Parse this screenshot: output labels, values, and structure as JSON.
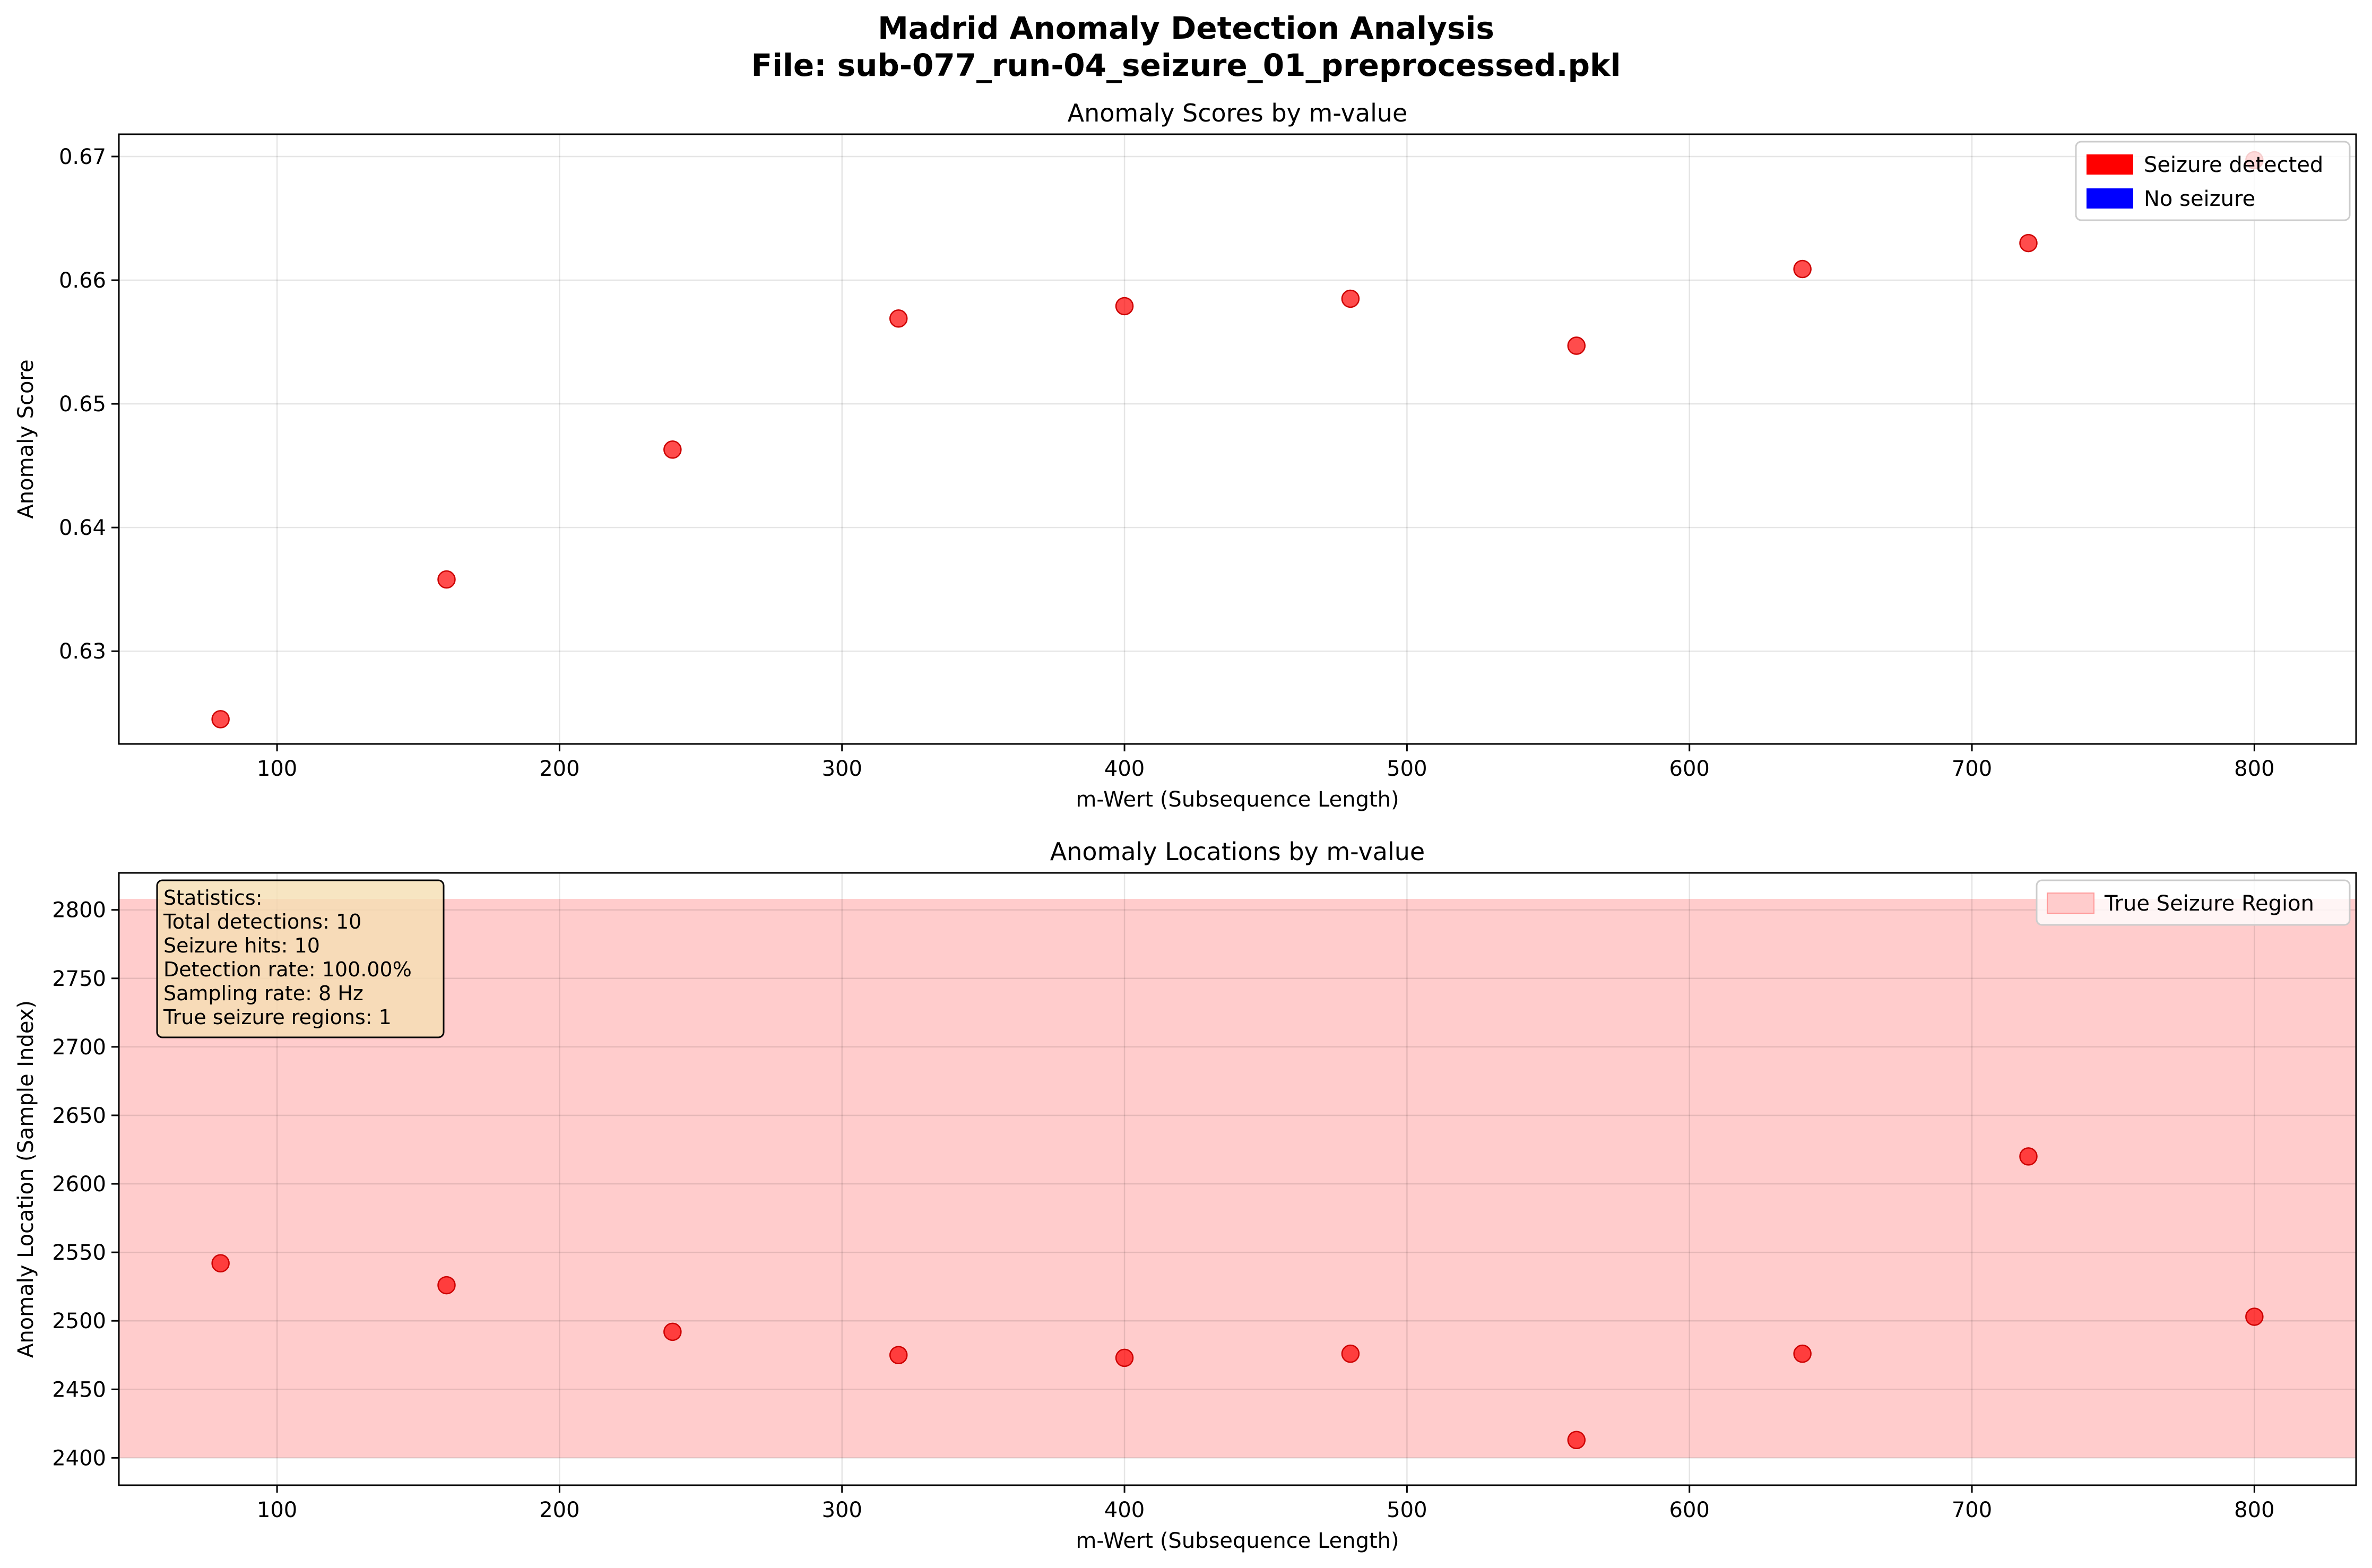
{
  "figure": {
    "title_line1": "Madrid Anomaly Detection Analysis",
    "title_line2": "File: sub-077_run-04_seizure_01_preprocessed.pkl"
  },
  "colors": {
    "marker": "#ff0000",
    "no_seizure": "#0000ff",
    "region": "#ffcccc",
    "stats_box": "#f5deb3",
    "grid": "#e6e6e6"
  },
  "chart_data": [
    {
      "type": "scatter",
      "title": "Anomaly Scores by m-value",
      "xlabel": "m-Wert (Subsequence Length)",
      "ylabel": "Anomaly Score",
      "xlim": [
        44,
        836
      ],
      "ylim": [
        0.6225,
        0.6718
      ],
      "xticks": [
        100,
        200,
        300,
        400,
        500,
        600,
        700,
        800
      ],
      "yticks": [
        0.63,
        0.64,
        0.65,
        0.66,
        0.67
      ],
      "ytick_labels": [
        "0.63",
        "0.64",
        "0.65",
        "0.66",
        "0.67"
      ],
      "grid": true,
      "legend_placement": "top-right",
      "legend": [
        {
          "label": "Seizure detected",
          "color": "#ff0000"
        },
        {
          "label": "No seizure",
          "color": "#0000ff"
        }
      ],
      "x": [
        80,
        160,
        240,
        320,
        400,
        480,
        560,
        640,
        720,
        800
      ],
      "y": [
        0.6245,
        0.6358,
        0.6463,
        0.6569,
        0.6579,
        0.6585,
        0.6547,
        0.6609,
        0.663,
        0.6697
      ]
    },
    {
      "type": "scatter",
      "title": "Anomaly Locations by m-value",
      "xlabel": "m-Wert (Subsequence Length)",
      "ylabel": "Anomaly Location (Sample Index)",
      "xlim": [
        44,
        836
      ],
      "ylim": [
        2380,
        2827
      ],
      "xticks": [
        100,
        200,
        300,
        400,
        500,
        600,
        700,
        800
      ],
      "yticks": [
        2400,
        2450,
        2500,
        2550,
        2600,
        2650,
        2700,
        2750,
        2800
      ],
      "ytick_labels": [
        "2400",
        "2450",
        "2500",
        "2550",
        "2600",
        "2650",
        "2700",
        "2750",
        "2800"
      ],
      "grid": true,
      "legend_placement": "top-right",
      "legend": [
        {
          "label": "True Seizure Region",
          "color": "#ffcccc"
        }
      ],
      "seizure_region": [
        2400,
        2808
      ],
      "x": [
        80,
        160,
        240,
        320,
        400,
        480,
        560,
        640,
        720,
        800
      ],
      "y": [
        2542,
        2526,
        2492,
        2475,
        2473,
        2476,
        2413,
        2476,
        2620,
        2503
      ],
      "statistics": [
        "Statistics:",
        "Total detections: 10",
        "Seizure hits: 10",
        "Detection rate: 100.00%",
        "Sampling rate: 8 Hz",
        "True seizure regions: 1"
      ]
    }
  ]
}
